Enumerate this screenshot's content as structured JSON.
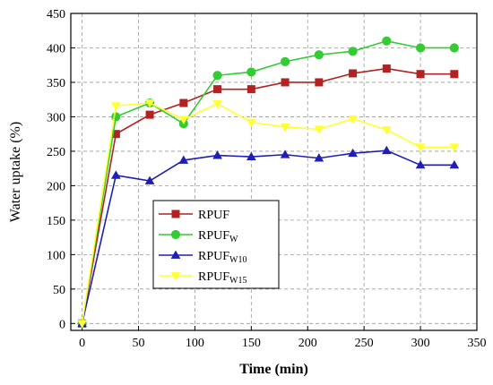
{
  "chart_data": {
    "type": "line",
    "xlabel": "Time (min)",
    "ylabel": "Water uptake (%)",
    "xlim": [
      -10,
      350
    ],
    "ylim": [
      -10,
      450
    ],
    "xticks": [
      0,
      50,
      100,
      150,
      200,
      250,
      300,
      350
    ],
    "yticks": [
      0,
      50,
      100,
      150,
      200,
      250,
      300,
      350,
      400,
      450
    ],
    "grid": true,
    "legend_position": "lower-left",
    "x": [
      0,
      30,
      60,
      90,
      120,
      150,
      180,
      210,
      240,
      270,
      300,
      330
    ],
    "series": [
      {
        "name": "RPUF",
        "name_main": "RPUF",
        "name_sub": "",
        "color": "#b22222",
        "marker": "square",
        "values": [
          0,
          275,
          303,
          320,
          340,
          340,
          350,
          350,
          363,
          370,
          362,
          362
        ]
      },
      {
        "name": "RPUFW",
        "name_main": "RPUF",
        "name_sub": "W",
        "color": "#33cc33",
        "marker": "circle",
        "values": [
          0,
          300,
          320,
          290,
          360,
          365,
          380,
          390,
          395,
          410,
          400,
          400
        ]
      },
      {
        "name": "RPUFW10",
        "name_main": "RPUF",
        "name_sub": "W10",
        "color": "#1f1fb4",
        "marker": "triangle-up",
        "values": [
          0,
          215,
          207,
          237,
          244,
          242,
          245,
          240,
          247,
          251,
          230,
          230
        ]
      },
      {
        "name": "RPUFW15",
        "name_main": "RPUF",
        "name_sub": "W15",
        "color": "#ffff33",
        "marker": "triangle-down",
        "values": [
          0,
          316,
          320,
          296,
          319,
          292,
          285,
          282,
          297,
          281,
          256,
          256
        ]
      }
    ]
  }
}
